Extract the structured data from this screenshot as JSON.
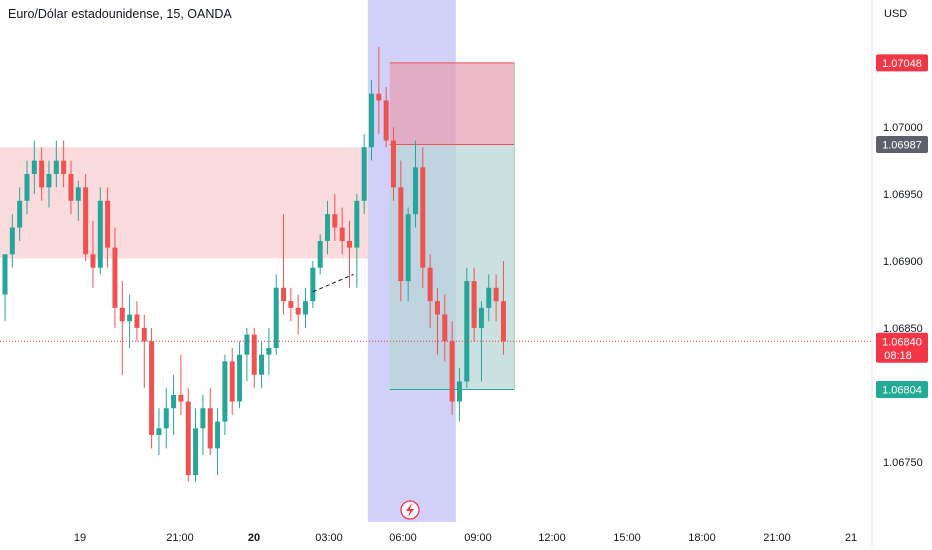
{
  "header": {
    "title": "Euro/Dólar estadounidense, 15, OANDA"
  },
  "currency": "USD",
  "colors": {
    "up": "#26a69a",
    "down": "#ef5350",
    "tag_red": "#f23645",
    "tag_gray": "#5d606b",
    "tag_green": "#22ab94"
  },
  "price_tags": [
    {
      "value": 1.07048,
      "label": "1.07048",
      "color": "#f23645"
    },
    {
      "value": 1.06987,
      "label": "1.06987",
      "color": "#5d606b"
    },
    {
      "value": 1.0684,
      "label": "1.06840",
      "sub": "08:18",
      "color": "#f23645"
    },
    {
      "value": 1.06804,
      "label": "1.06804",
      "color": "#22ab94"
    }
  ],
  "flash_icon": "lightning-icon",
  "chart_data": {
    "type": "candlestick",
    "instrument": "Euro/Dólar estadounidense",
    "interval": "15",
    "source": "OANDA",
    "y_ticks": [
      "1.07000",
      "1.06950",
      "1.06900",
      "1.06850",
      "1.06750"
    ],
    "y_tick_values": [
      1.07,
      1.0695,
      1.069,
      1.0685,
      1.0675
    ],
    "ylim": [
      1.06705,
      1.07095
    ],
    "x_ticks": [
      {
        "label": "19",
        "bold": false
      },
      {
        "label": "21:00",
        "bold": false
      },
      {
        "label": "20",
        "bold": true
      },
      {
        "label": "03:00",
        "bold": false
      },
      {
        "label": "06:00",
        "bold": false
      },
      {
        "label": "09:00",
        "bold": false
      },
      {
        "label": "12:00",
        "bold": false
      },
      {
        "label": "15:00",
        "bold": false
      },
      {
        "label": "18:00",
        "bold": false
      },
      {
        "label": "21:00",
        "bold": false
      },
      {
        "label": "21",
        "bold": false
      }
    ],
    "candles": [
      [
        1.06875,
        1.06905,
        1.06855,
        1.06905
      ],
      [
        1.06905,
        1.06935,
        1.06895,
        1.06925
      ],
      [
        1.06925,
        1.06955,
        1.06915,
        1.06945
      ],
      [
        1.06945,
        1.06975,
        1.06935,
        1.06965
      ],
      [
        1.06965,
        1.0699,
        1.0695,
        1.06975
      ],
      [
        1.06975,
        1.06985,
        1.06945,
        1.06955
      ],
      [
        1.06955,
        1.06975,
        1.0694,
        1.06965
      ],
      [
        1.06965,
        1.0699,
        1.06955,
        1.06975
      ],
      [
        1.06975,
        1.0699,
        1.06955,
        1.06965
      ],
      [
        1.06965,
        1.06975,
        1.06935,
        1.06945
      ],
      [
        1.06945,
        1.0696,
        1.0693,
        1.06955
      ],
      [
        1.06955,
        1.06965,
        1.069,
        1.06905
      ],
      [
        1.06905,
        1.0693,
        1.0688,
        1.06895
      ],
      [
        1.06895,
        1.06955,
        1.0689,
        1.06945
      ],
      [
        1.06945,
        1.06955,
        1.06895,
        1.0691
      ],
      [
        1.0691,
        1.06925,
        1.0685,
        1.06865
      ],
      [
        1.06865,
        1.06885,
        1.06815,
        1.06855
      ],
      [
        1.06855,
        1.06875,
        1.06835,
        1.0686
      ],
      [
        1.0686,
        1.0687,
        1.0684,
        1.0685
      ],
      [
        1.0685,
        1.0686,
        1.06805,
        1.0684
      ],
      [
        1.0684,
        1.0685,
        1.0676,
        1.0677
      ],
      [
        1.0677,
        1.0679,
        1.06755,
        1.06775
      ],
      [
        1.06775,
        1.06805,
        1.0676,
        1.0679
      ],
      [
        1.0679,
        1.06815,
        1.0677,
        1.068
      ],
      [
        1.068,
        1.0683,
        1.06785,
        1.06795
      ],
      [
        1.06795,
        1.06805,
        1.06735,
        1.0674
      ],
      [
        1.0674,
        1.0679,
        1.06735,
        1.06775
      ],
      [
        1.06775,
        1.068,
        1.06755,
        1.0679
      ],
      [
        1.0679,
        1.06805,
        1.06755,
        1.0676
      ],
      [
        1.0676,
        1.0679,
        1.0674,
        1.0678
      ],
      [
        1.0678,
        1.0683,
        1.0677,
        1.06825
      ],
      [
        1.06825,
        1.06835,
        1.06785,
        1.06795
      ],
      [
        1.06795,
        1.0684,
        1.0679,
        1.0683
      ],
      [
        1.0683,
        1.0685,
        1.0681,
        1.06845
      ],
      [
        1.06845,
        1.0685,
        1.06805,
        1.06815
      ],
      [
        1.06815,
        1.0684,
        1.06805,
        1.0683
      ],
      [
        1.0683,
        1.0685,
        1.06815,
        1.06835
      ],
      [
        1.06835,
        1.0689,
        1.0683,
        1.0688
      ],
      [
        1.0688,
        1.06935,
        1.0686,
        1.0687
      ],
      [
        1.0687,
        1.0688,
        1.06855,
        1.06865
      ],
      [
        1.06865,
        1.06875,
        1.06845,
        1.0686
      ],
      [
        1.0686,
        1.0688,
        1.0685,
        1.0687
      ],
      [
        1.0687,
        1.069,
        1.06865,
        1.06895
      ],
      [
        1.06895,
        1.0692,
        1.0689,
        1.06915
      ],
      [
        1.06915,
        1.06945,
        1.06905,
        1.06935
      ],
      [
        1.06935,
        1.0695,
        1.06915,
        1.06925
      ],
      [
        1.06925,
        1.0694,
        1.06905,
        1.06915
      ],
      [
        1.06915,
        1.0693,
        1.0688,
        1.0691
      ],
      [
        1.0691,
        1.0695,
        1.0688,
        1.06945
      ],
      [
        1.06945,
        1.06995,
        1.06935,
        1.06985
      ],
      [
        1.06985,
        1.07035,
        1.06975,
        1.07025
      ],
      [
        1.07025,
        1.0706,
        1.06995,
        1.0702
      ],
      [
        1.0702,
        1.0703,
        1.06985,
        1.0699
      ],
      [
        1.0699,
        1.07,
        1.06945,
        1.06955
      ],
      [
        1.06955,
        1.06975,
        1.0687,
        1.06885
      ],
      [
        1.06885,
        1.0694,
        1.0687,
        1.06935
      ],
      [
        1.06935,
        1.0699,
        1.06925,
        1.0697
      ],
      [
        1.0697,
        1.06985,
        1.0688,
        1.06895
      ],
      [
        1.06895,
        1.06905,
        1.0685,
        1.0687
      ],
      [
        1.0687,
        1.0688,
        1.0683,
        1.0686
      ],
      [
        1.0686,
        1.06875,
        1.06825,
        1.0684
      ],
      [
        1.0684,
        1.06855,
        1.06785,
        1.06795
      ],
      [
        1.06795,
        1.0682,
        1.0678,
        1.0681
      ],
      [
        1.0681,
        1.06895,
        1.06805,
        1.06885
      ],
      [
        1.06885,
        1.06895,
        1.0684,
        1.0685
      ],
      [
        1.0685,
        1.0687,
        1.0681,
        1.06865
      ],
      [
        1.06865,
        1.0689,
        1.06855,
        1.0688
      ],
      [
        1.0688,
        1.0689,
        1.06855,
        1.0687
      ],
      [
        1.0687,
        1.069,
        1.0683,
        1.0684
      ]
    ],
    "zones": [
      {
        "type": "supply",
        "from_index": 0,
        "to_index": 49,
        "top": 1.06985,
        "bottom": 1.06902,
        "color": "#f8cfd3"
      },
      {
        "type": "session",
        "from_index": 50,
        "to_index": 61,
        "top": 1.07095,
        "bottom": 1.06705,
        "color": "#c8c8f7"
      },
      {
        "type": "stop",
        "from_index": 53,
        "to_index": 69,
        "top": 1.07048,
        "bottom": 1.06987,
        "color": "#e7a2b5"
      },
      {
        "type": "target",
        "from_index": 53,
        "to_index": 69,
        "top": 1.06987,
        "bottom": 1.06804,
        "color": "#b9d5d6"
      }
    ]
  }
}
